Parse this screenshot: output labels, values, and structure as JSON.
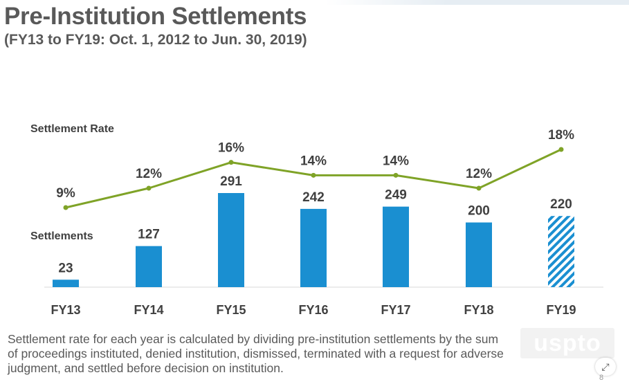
{
  "header": {
    "title": "Pre-Institution Settlements",
    "subtitle": "(FY13 to FY19: Oct. 1, 2012 to Jun. 30, 2019)"
  },
  "chart_data": {
    "type": "bar",
    "categories": [
      "FY13",
      "FY14",
      "FY15",
      "FY16",
      "FY17",
      "FY18",
      "FY19"
    ],
    "series": [
      {
        "name": "Settlements",
        "type": "bar",
        "values": [
          23,
          127,
          291,
          242,
          249,
          200,
          220
        ],
        "color": "#1a8fd1",
        "hatched_last": true
      },
      {
        "name": "Settlement Rate",
        "type": "line",
        "values": [
          9,
          12,
          16,
          14,
          14,
          12,
          18
        ],
        "labels": [
          "9%",
          "12%",
          "16%",
          "14%",
          "14%",
          "12%",
          "18%"
        ],
        "color": "#7fa327"
      }
    ],
    "grid": false
  },
  "footnote": {
    "text": "Settlement rate for each year is calculated by dividing pre-institution settlements by the sum of proceedings instituted, denied institution, dismissed, terminated with a request for adverse judgment, and settled before decision on institution."
  },
  "branding": {
    "logo": "uspto"
  },
  "controls": {
    "expand_icon": "collapse-arrows-icon",
    "page_number": "8"
  }
}
